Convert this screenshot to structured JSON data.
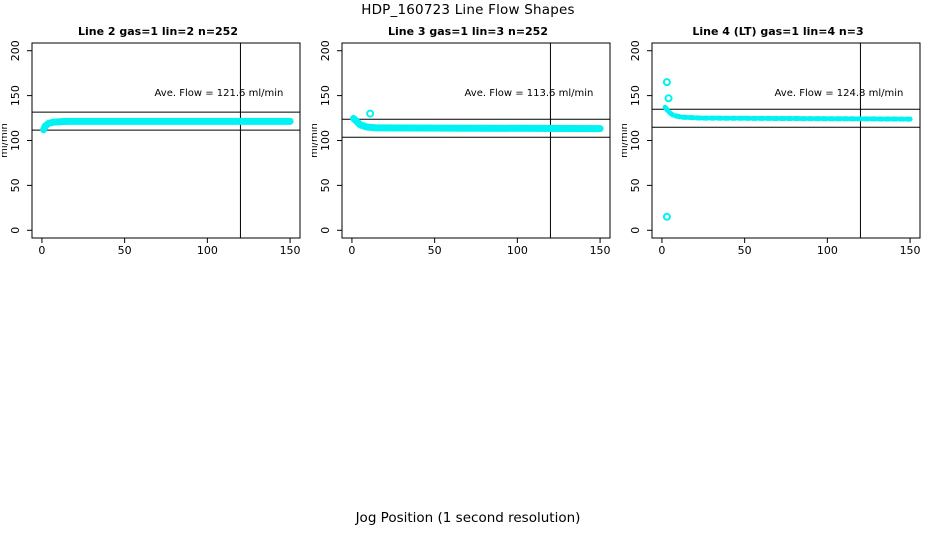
{
  "figure": {
    "title": "HDP_160723  Line Flow Shapes",
    "xlabel": "Jog Position (1 second resolution)",
    "background": "#ffffff",
    "axis_color": "#000000",
    "point_color": "#00f2f2"
  },
  "chart_data": [
    {
      "type": "scatter",
      "title": "Line 2 gas=1 lin=2 n=252",
      "line": 2,
      "gas": 1,
      "lin": 2,
      "n": 252,
      "ylabel": "ml/min",
      "xlim": [
        0,
        150
      ],
      "ylim": [
        0,
        200
      ],
      "xticks": [
        0,
        50,
        100,
        150
      ],
      "yticks": [
        0,
        50,
        100,
        150,
        200
      ],
      "grid": false,
      "ave_flow": 121.6,
      "ave_flow_label": "Ave. Flow =  121.6  ml/min",
      "ref_lines_y": [
        111.6,
        131.6
      ],
      "marker_line_x": 120,
      "band": {
        "points": [
          [
            1,
            112
          ],
          [
            2,
            116
          ],
          [
            4,
            119
          ],
          [
            7,
            120.5
          ],
          [
            15,
            121.3
          ],
          [
            150,
            121.3
          ]
        ],
        "width": 7,
        "dash": null
      },
      "outliers": []
    },
    {
      "type": "scatter",
      "title": "Line 3 gas=1 lin=3 n=252",
      "line": 3,
      "gas": 1,
      "lin": 3,
      "n": 252,
      "ylabel": "ml/min",
      "xlim": [
        0,
        150
      ],
      "ylim": [
        0,
        200
      ],
      "xticks": [
        0,
        50,
        100,
        150
      ],
      "yticks": [
        0,
        50,
        100,
        150,
        200
      ],
      "grid": false,
      "ave_flow": 113.6,
      "ave_flow_label": "Ave. Flow =  113.6  ml/min",
      "ref_lines_y": [
        103.6,
        123.6
      ],
      "marker_line_x": 120,
      "band": {
        "points": [
          [
            1,
            124.5
          ],
          [
            3,
            121
          ],
          [
            5,
            117.5
          ],
          [
            9,
            115
          ],
          [
            15,
            114
          ],
          [
            150,
            113.2
          ]
        ],
        "width": 7,
        "dash": null
      },
      "outliers": [
        [
          11,
          130
        ]
      ]
    },
    {
      "type": "scatter",
      "title": "Line 4 (LT) gas=1 lin=4 n=3",
      "line": 4,
      "gas": 1,
      "lin": 4,
      "n": 3,
      "ylabel": "ml/min",
      "xlim": [
        0,
        150
      ],
      "ylim": [
        0,
        200
      ],
      "xticks": [
        0,
        50,
        100,
        150
      ],
      "yticks": [
        0,
        50,
        100,
        150,
        200
      ],
      "grid": false,
      "ave_flow": 124.8,
      "ave_flow_label": "Ave. Flow =  124.8  ml/min",
      "ref_lines_y": [
        114.8,
        134.8
      ],
      "marker_line_x": 120,
      "band": {
        "points": [
          [
            2,
            137
          ],
          [
            4,
            132
          ],
          [
            7,
            128
          ],
          [
            12,
            126
          ],
          [
            25,
            125
          ],
          [
            150,
            123.8
          ]
        ],
        "width": 5,
        "dash": "4 3"
      },
      "outliers": [
        [
          3,
          165
        ],
        [
          4,
          147
        ],
        [
          3,
          15
        ]
      ]
    }
  ]
}
